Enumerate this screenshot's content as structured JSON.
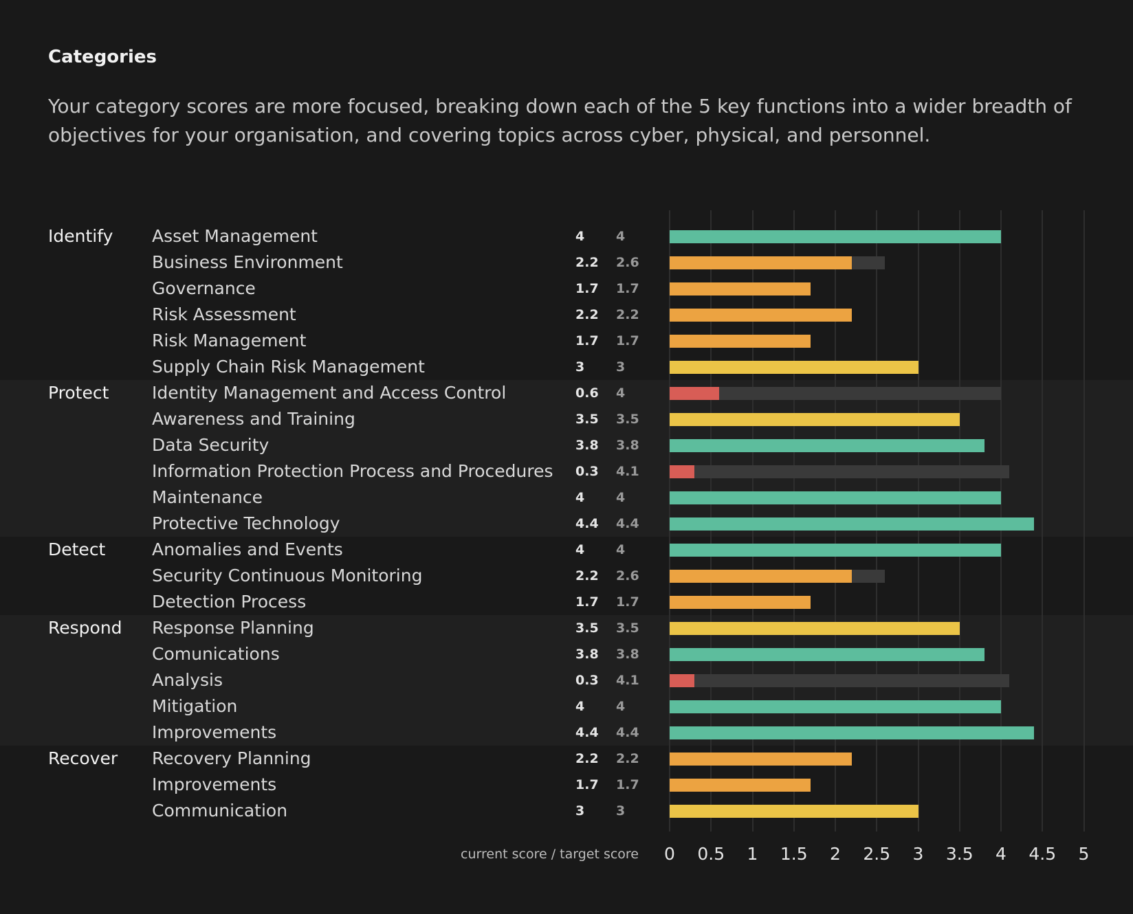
{
  "header": {
    "title": "Categories",
    "description": "Your category scores are more focused, breaking down each of the 5 key functions into a wider breadth of objectives for your organisation, and covering topics across cyber, physical, and personnel."
  },
  "colors": {
    "green": "#5dbd9d",
    "yellow": "#ebc447",
    "orange": "#eca341",
    "red": "#d85d56",
    "track": "#3a3a3a"
  },
  "chart_data": {
    "type": "bar",
    "orientation": "horizontal",
    "xaxis_caption": "current score / target score",
    "xlim": [
      0,
      5
    ],
    "xticks": [
      "0",
      "0.5",
      "1",
      "1.5",
      "2",
      "2.5",
      "3",
      "3.5",
      "4",
      "4.5",
      "5"
    ],
    "grid": true,
    "groups": [
      {
        "function": "Identify",
        "rows": [
          {
            "category": "Asset Management",
            "current": 4,
            "target": 4,
            "current_label": "4",
            "target_label": "4",
            "color": "green"
          },
          {
            "category": "Business Environment",
            "current": 2.2,
            "target": 2.6,
            "current_label": "2.2",
            "target_label": "2.6",
            "color": "orange"
          },
          {
            "category": "Governance",
            "current": 1.7,
            "target": 1.7,
            "current_label": "1.7",
            "target_label": "1.7",
            "color": "orange"
          },
          {
            "category": "Risk Assessment",
            "current": 2.2,
            "target": 2.2,
            "current_label": "2.2",
            "target_label": "2.2",
            "color": "orange"
          },
          {
            "category": "Risk Management",
            "current": 1.7,
            "target": 1.7,
            "current_label": "1.7",
            "target_label": "1.7",
            "color": "orange"
          },
          {
            "category": "Supply Chain Risk Management",
            "current": 3,
            "target": 3,
            "current_label": "3",
            "target_label": "3",
            "color": "yellow"
          }
        ]
      },
      {
        "function": "Protect",
        "rows": [
          {
            "category": "Identity Management and Access Control",
            "current": 0.6,
            "target": 4,
            "current_label": "0.6",
            "target_label": "4",
            "color": "red"
          },
          {
            "category": "Awareness and Training",
            "current": 3.5,
            "target": 3.5,
            "current_label": "3.5",
            "target_label": "3.5",
            "color": "yellow"
          },
          {
            "category": "Data Security",
            "current": 3.8,
            "target": 3.8,
            "current_label": "3.8",
            "target_label": "3.8",
            "color": "green"
          },
          {
            "category": "Information Protection Process and Procedures",
            "current": 0.3,
            "target": 4.1,
            "current_label": "0.3",
            "target_label": "4.1",
            "color": "red"
          },
          {
            "category": "Maintenance",
            "current": 4,
            "target": 4,
            "current_label": "4",
            "target_label": "4",
            "color": "green"
          },
          {
            "category": "Protective Technology",
            "current": 4.4,
            "target": 4.4,
            "current_label": "4.4",
            "target_label": "4.4",
            "color": "green"
          }
        ]
      },
      {
        "function": "Detect",
        "rows": [
          {
            "category": "Anomalies and Events",
            "current": 4,
            "target": 4,
            "current_label": "4",
            "target_label": "4",
            "color": "green"
          },
          {
            "category": "Security Continuous Monitoring",
            "current": 2.2,
            "target": 2.6,
            "current_label": "2.2",
            "target_label": "2.6",
            "color": "orange"
          },
          {
            "category": "Detection Process",
            "current": 1.7,
            "target": 1.7,
            "current_label": "1.7",
            "target_label": "1.7",
            "color": "orange"
          }
        ]
      },
      {
        "function": "Respond",
        "rows": [
          {
            "category": "Response Planning",
            "current": 3.5,
            "target": 3.5,
            "current_label": "3.5",
            "target_label": "3.5",
            "color": "yellow"
          },
          {
            "category": "Comunications",
            "current": 3.8,
            "target": 3.8,
            "current_label": "3.8",
            "target_label": "3.8",
            "color": "green"
          },
          {
            "category": "Analysis",
            "current": 0.3,
            "target": 4.1,
            "current_label": "0.3",
            "target_label": "4.1",
            "color": "red"
          },
          {
            "category": "Mitigation",
            "current": 4,
            "target": 4,
            "current_label": "4",
            "target_label": "4",
            "color": "green"
          },
          {
            "category": "Improvements",
            "current": 4.4,
            "target": 4.4,
            "current_label": "4.4",
            "target_label": "4.4",
            "color": "green"
          }
        ]
      },
      {
        "function": "Recover",
        "rows": [
          {
            "category": "Recovery Planning",
            "current": 2.2,
            "target": 2.2,
            "current_label": "2.2",
            "target_label": "2.2",
            "color": "orange"
          },
          {
            "category": "Improvements",
            "current": 1.7,
            "target": 1.7,
            "current_label": "1.7",
            "target_label": "1.7",
            "color": "orange"
          },
          {
            "category": "Communication",
            "current": 3,
            "target": 3,
            "current_label": "3",
            "target_label": "3",
            "color": "yellow"
          }
        ]
      }
    ]
  }
}
